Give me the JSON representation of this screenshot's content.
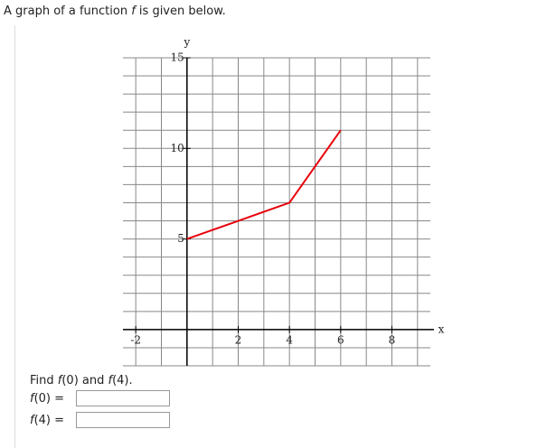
{
  "question": {
    "intro": [
      "A graph of a function ",
      "f",
      " is given below."
    ],
    "prompt": [
      "Find ",
      "f",
      "(0) and ",
      "f",
      "(4)."
    ],
    "answers": [
      {
        "label": [
          "f",
          "(0)",
          "="
        ]
      },
      {
        "label": [
          "f",
          "(4)",
          "="
        ]
      }
    ]
  },
  "chart_data": {
    "type": "line",
    "x_label": "x",
    "y_label": "y",
    "x": [
      0,
      4,
      6
    ],
    "values": [
      5,
      7,
      11
    ],
    "color": "#e8000b",
    "xlim": [
      -2.5,
      9.5
    ],
    "ylim": [
      -2,
      15
    ],
    "xticks": [
      -2,
      2,
      4,
      6,
      8
    ],
    "yticks": [
      5,
      10,
      15
    ],
    "grid": true,
    "grid_step": 1
  }
}
